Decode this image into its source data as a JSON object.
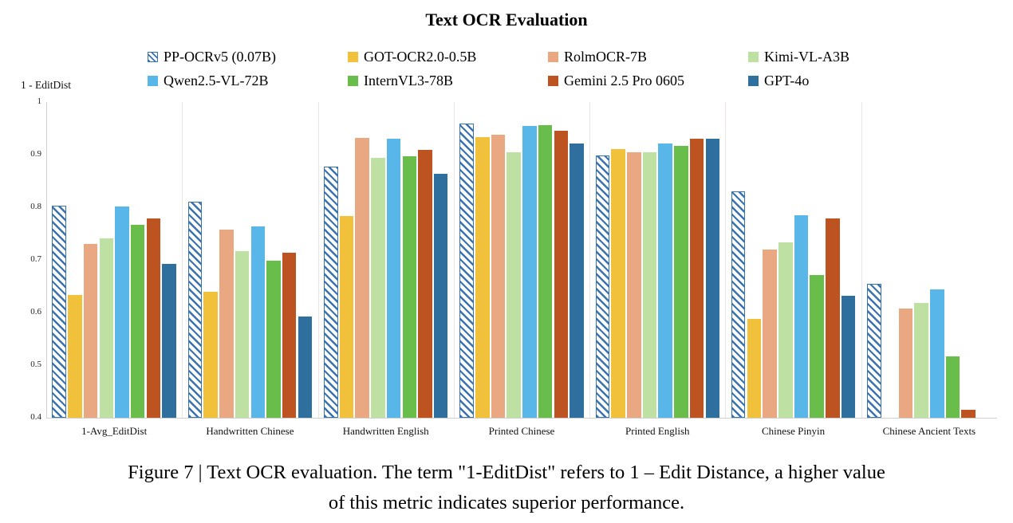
{
  "title": "Text OCR Evaluation",
  "y_axis_label": "1 - EditDist",
  "caption": {
    "line1": "Figure 7 | Text OCR evaluation. The term \"1-EditDist\" refers to 1 – Edit Distance, a higher value",
    "line2": "of this metric indicates superior performance."
  },
  "chart_data": {
    "type": "bar",
    "title": "Text OCR Evaluation",
    "xlabel": "",
    "ylabel": "1 - EditDist",
    "ylim": [
      0.4,
      1.0
    ],
    "yticks": [
      "1",
      "0.9",
      "0.8",
      "0.7",
      "0.6",
      "0.5",
      "0.4"
    ],
    "grid": false,
    "legend_position": "top",
    "axis_color": "#d0d0d0",
    "separator_color": "#ece4e2",
    "categories": [
      "1-Avg_EditDist",
      "Handwritten Chinese",
      "Handwritten English",
      "Printed Chinese",
      "Printed English",
      "Chinese Pinyin",
      "Chinese Ancient Texts"
    ],
    "series": [
      {
        "name": "PP-OCRv5 (0.07B)",
        "style": "hatched",
        "color": "#3a72b0",
        "values": [
          0.803,
          0.81,
          0.878,
          0.959,
          0.898,
          0.831,
          0.655
        ]
      },
      {
        "name": "GOT-OCR2.0-0.5B",
        "style": "solid",
        "color": "#f1c13c",
        "values": [
          0.634,
          0.64,
          0.783,
          0.934,
          0.91,
          0.588,
          null
        ]
      },
      {
        "name": "RolmOCR-7B",
        "style": "solid",
        "color": "#e9a882",
        "values": [
          0.73,
          0.757,
          0.932,
          0.938,
          0.905,
          0.72,
          0.607
        ]
      },
      {
        "name": "Kimi-VL-A3B",
        "style": "solid",
        "color": "#bee0a3",
        "values": [
          0.741,
          0.717,
          0.894,
          0.905,
          0.905,
          0.733,
          0.618
        ]
      },
      {
        "name": "Qwen2.5-VL-72B",
        "style": "solid",
        "color": "#58b7e8",
        "values": [
          0.802,
          0.763,
          0.93,
          0.955,
          0.922,
          0.785,
          0.644
        ]
      },
      {
        "name": "InternVL3-78B",
        "style": "solid",
        "color": "#69be4b",
        "values": [
          0.767,
          0.698,
          0.897,
          0.956,
          0.917,
          0.672,
          0.516
        ]
      },
      {
        "name": "Gemini 2.5 Pro 0605",
        "style": "solid",
        "color": "#bd5320",
        "values": [
          0.779,
          0.714,
          0.909,
          0.946,
          0.93,
          0.779,
          0.415
        ]
      },
      {
        "name": "GPT-4o",
        "style": "solid",
        "color": "#2e6f9e",
        "values": [
          0.692,
          0.593,
          0.863,
          0.922,
          0.93,
          0.632,
          null
        ]
      }
    ]
  }
}
